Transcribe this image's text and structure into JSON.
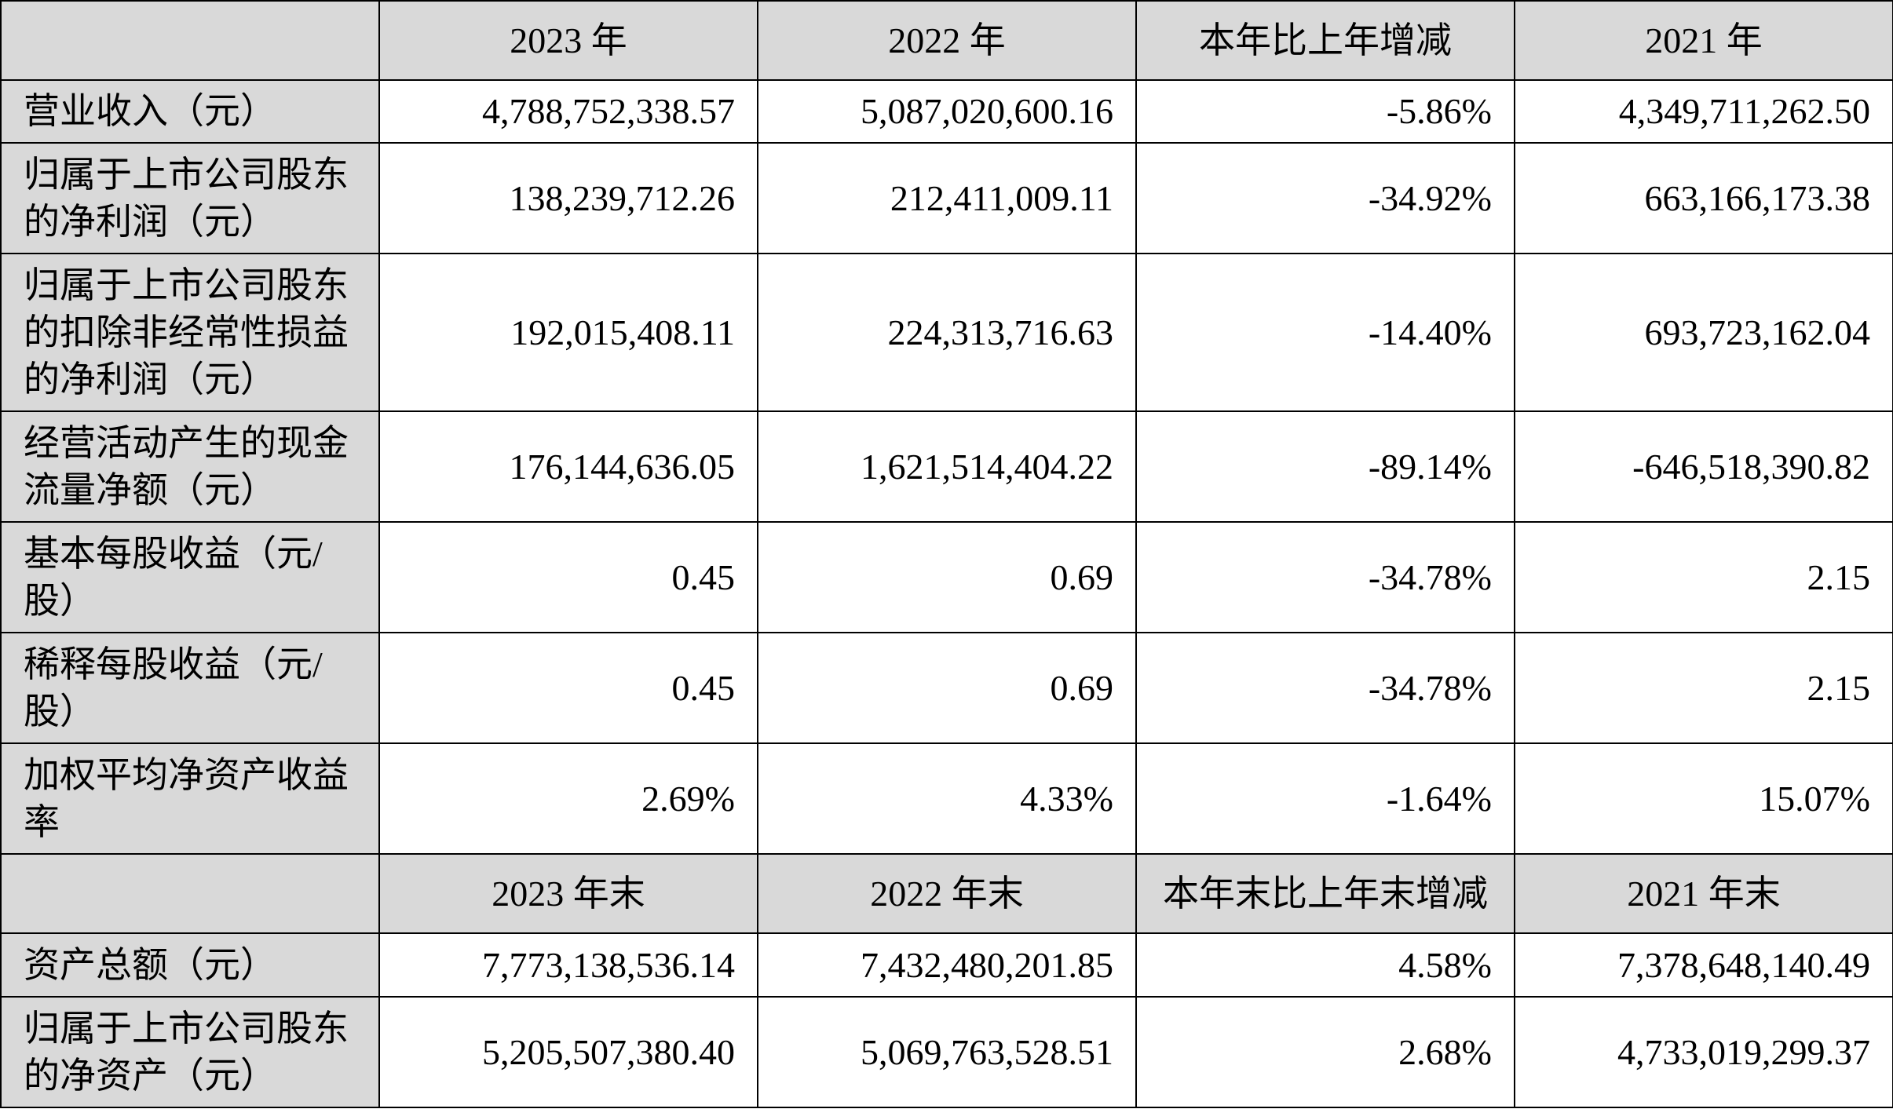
{
  "header_period": [
    "2023 年",
    "2022 年",
    "本年比上年增减",
    "2021 年"
  ],
  "rows_period": [
    {
      "label": "营业收入（元）",
      "values": [
        "4,788,752,338.57",
        "5,087,020,600.16",
        "-5.86%",
        "4,349,711,262.50"
      ]
    },
    {
      "label": "归属于上市公司股东的净利润（元）",
      "values": [
        "138,239,712.26",
        "212,411,009.11",
        "-34.92%",
        "663,166,173.38"
      ]
    },
    {
      "label": "归属于上市公司股东的扣除非经常性损益的净利润（元）",
      "values": [
        "192,015,408.11",
        "224,313,716.63",
        "-14.40%",
        "693,723,162.04"
      ]
    },
    {
      "label": "经营活动产生的现金流量净额（元）",
      "values": [
        "176,144,636.05",
        "1,621,514,404.22",
        "-89.14%",
        "-646,518,390.82"
      ]
    },
    {
      "label": "基本每股收益（元/股）",
      "values": [
        "0.45",
        "0.69",
        "-34.78%",
        "2.15"
      ]
    },
    {
      "label": "稀释每股收益（元/股）",
      "values": [
        "0.45",
        "0.69",
        "-34.78%",
        "2.15"
      ]
    },
    {
      "label": "加权平均净资产收益率",
      "values": [
        "2.69%",
        "4.33%",
        "-1.64%",
        "15.07%"
      ]
    }
  ],
  "header_yearend": [
    "2023 年末",
    "2022 年末",
    "本年末比上年末增减",
    "2021 年末"
  ],
  "rows_yearend": [
    {
      "label": "资产总额（元）",
      "values": [
        "7,773,138,536.14",
        "7,432,480,201.85",
        "4.58%",
        "7,378,648,140.49"
      ]
    },
    {
      "label": "归属于上市公司股东的净资产（元）",
      "values": [
        "5,205,507,380.40",
        "5,069,763,528.51",
        "2.68%",
        "4,733,019,299.37"
      ]
    }
  ]
}
